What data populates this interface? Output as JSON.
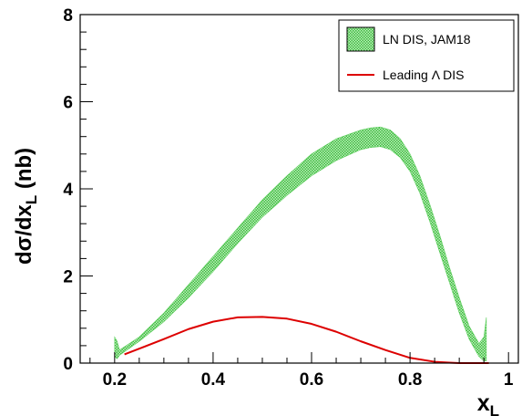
{
  "chart_data": {
    "type": "line",
    "xlabel": {
      "base": "x",
      "sub": "L"
    },
    "ylabel": {
      "base": "dσ/dx",
      "sub": "L",
      "unit": " (nb)"
    },
    "xlim": [
      0.13,
      1.02
    ],
    "ylim": [
      0,
      8
    ],
    "x_ticks": [
      0.2,
      0.4,
      0.6,
      0.8,
      1
    ],
    "x_tick_labels": [
      "0.2",
      "0.4",
      "0.6",
      "0.8",
      "1"
    ],
    "y_ticks": [
      0,
      2,
      4,
      6,
      8
    ],
    "y_tick_labels": [
      "0",
      "2",
      "4",
      "6",
      "8"
    ],
    "grid": false,
    "legend": {
      "placement": "top-right"
    },
    "series": [
      {
        "name": "LN DIS, JAM18",
        "kind": "band",
        "color": "#7ee07e",
        "x": [
          0.2,
          0.205,
          0.21,
          0.25,
          0.3,
          0.35,
          0.4,
          0.45,
          0.5,
          0.55,
          0.6,
          0.65,
          0.7,
          0.72,
          0.74,
          0.76,
          0.78,
          0.8,
          0.82,
          0.84,
          0.86,
          0.88,
          0.9,
          0.92,
          0.94,
          0.95,
          0.955
        ],
        "lower": [
          0.15,
          0.1,
          0.18,
          0.5,
          0.95,
          1.5,
          2.1,
          2.75,
          3.35,
          3.85,
          4.3,
          4.65,
          4.9,
          4.95,
          4.97,
          4.9,
          4.72,
          4.4,
          3.9,
          3.25,
          2.55,
          1.85,
          1.15,
          0.55,
          0.15,
          0.05,
          0.05
        ],
        "upper": [
          0.6,
          0.5,
          0.3,
          0.6,
          1.15,
          1.8,
          2.45,
          3.1,
          3.75,
          4.3,
          4.8,
          5.15,
          5.35,
          5.4,
          5.42,
          5.35,
          5.15,
          4.8,
          4.3,
          3.65,
          2.95,
          2.2,
          1.5,
          0.85,
          0.45,
          0.6,
          1.05
        ]
      },
      {
        "name": "Leading Λ DIS",
        "kind": "line",
        "color": "#dd0000",
        "x": [
          0.22,
          0.25,
          0.3,
          0.35,
          0.4,
          0.45,
          0.5,
          0.55,
          0.6,
          0.65,
          0.7,
          0.75,
          0.8,
          0.85,
          0.88,
          0.9,
          0.93,
          0.96
        ],
        "y": [
          0.2,
          0.33,
          0.55,
          0.78,
          0.95,
          1.05,
          1.06,
          1.02,
          0.9,
          0.72,
          0.5,
          0.3,
          0.12,
          0.03,
          0.01,
          0.0,
          0.0,
          0.0
        ]
      }
    ]
  }
}
